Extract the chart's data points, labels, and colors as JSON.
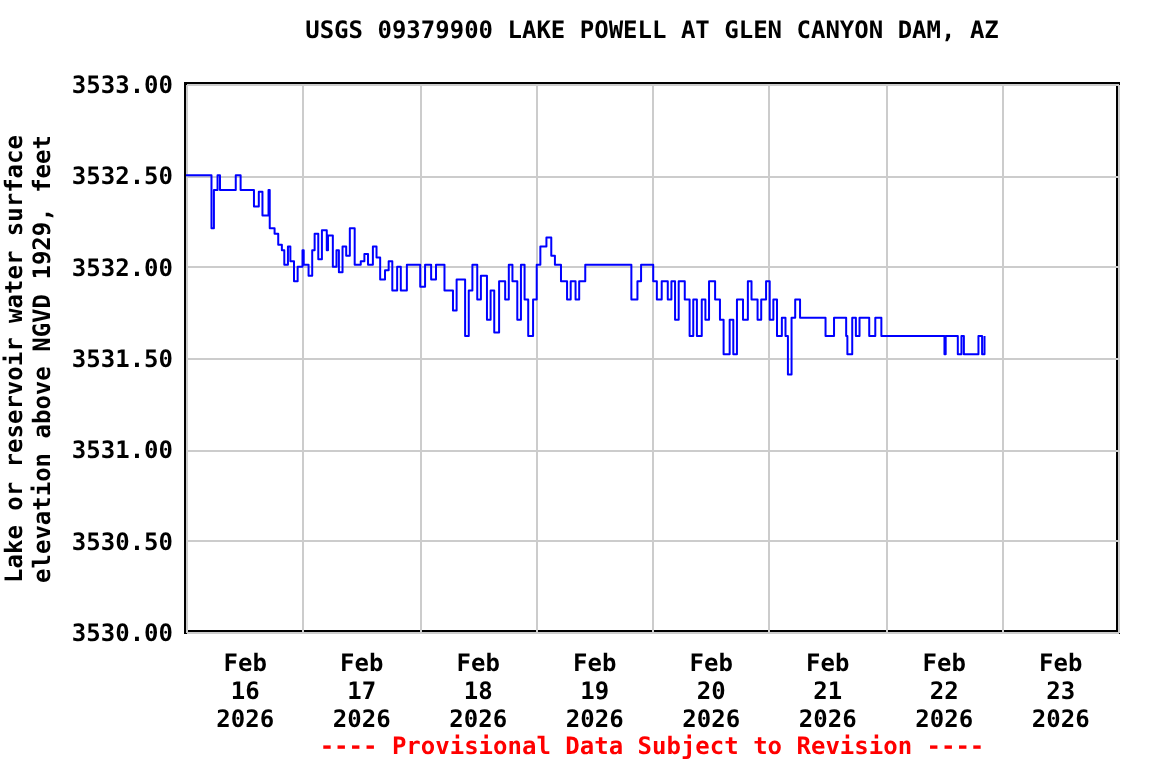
{
  "chart_data": {
    "type": "step",
    "title": "USGS 09379900 LAKE POWELL AT GLEN CANYON DAM, AZ",
    "ylabel": "Lake or reservoir water surface\nelevation above NGVD 1929, feet",
    "annotations": [
      "---- Provisional Data Subject to Revision ----"
    ],
    "grid": true,
    "ylim": [
      3530,
      3533
    ],
    "yticks": [
      {
        "value": 3530,
        "label": "3530.00"
      },
      {
        "value": 3530.5,
        "label": "3530.50"
      },
      {
        "value": 3531,
        "label": "3531.00"
      },
      {
        "value": 3531.5,
        "label": "3531.50"
      },
      {
        "value": 3532,
        "label": "3532.00"
      },
      {
        "value": 3532.5,
        "label": "3532.50"
      },
      {
        "value": 3533,
        "label": "3533.00"
      }
    ],
    "xlim": [
      "2026-02-16T00:00",
      "2026-02-24T00:00"
    ],
    "xticks": [
      {
        "value": "2026-02-16T00:00",
        "label": null
      },
      {
        "value": "2026-02-16T12:00",
        "label": "Feb\n16\n2026"
      },
      {
        "value": "2026-02-17T00:00",
        "label": null
      },
      {
        "value": "2026-02-17T12:00",
        "label": "Feb\n17\n2026"
      },
      {
        "value": "2026-02-18T00:00",
        "label": null
      },
      {
        "value": "2026-02-18T12:00",
        "label": "Feb\n18\n2026"
      },
      {
        "value": "2026-02-19T00:00",
        "label": null
      },
      {
        "value": "2026-02-19T12:00",
        "label": "Feb\n19\n2026"
      },
      {
        "value": "2026-02-20T00:00",
        "label": null
      },
      {
        "value": "2026-02-20T12:00",
        "label": "Feb\n20\n2026"
      },
      {
        "value": "2026-02-21T00:00",
        "label": null
      },
      {
        "value": "2026-02-21T12:00",
        "label": "Feb\n21\n2026"
      },
      {
        "value": "2026-02-22T00:00",
        "label": null
      },
      {
        "value": "2026-02-22T12:00",
        "label": "Feb\n22\n2026"
      },
      {
        "value": "2026-02-23T00:00",
        "label": null
      },
      {
        "value": "2026-02-23T12:00",
        "label": "Feb\n23\n2026"
      },
      {
        "value": "2026-02-24T00:00",
        "label": null
      }
    ],
    "series": [
      {
        "color": "#0000ff",
        "x": [
          "2026-02-16T00:00",
          "2026-02-16T05:00",
          "2026-02-16T05:15",
          "2026-02-16T05:45",
          "2026-02-16T06:30",
          "2026-02-16T07:00",
          "2026-02-16T10:00",
          "2026-02-16T10:15",
          "2026-02-16T11:15",
          "2026-02-16T13:30",
          "2026-02-16T14:00",
          "2026-02-16T15:00",
          "2026-02-16T15:45",
          "2026-02-16T17:00",
          "2026-02-16T17:15",
          "2026-02-16T18:15",
          "2026-02-16T19:00",
          "2026-02-16T19:45",
          "2026-02-16T20:15",
          "2026-02-16T21:00",
          "2026-02-16T21:30",
          "2026-02-16T22:15",
          "2026-02-16T23:00",
          "2026-02-17T00:00",
          "2026-02-17T00:15",
          "2026-02-17T01:15",
          "2026-02-17T02:00",
          "2026-02-17T02:30",
          "2026-02-17T03:15",
          "2026-02-17T04:00",
          "2026-02-17T05:00",
          "2026-02-17T05:15",
          "2026-02-17T06:15",
          "2026-02-17T07:00",
          "2026-02-17T07:30",
          "2026-02-17T08:15",
          "2026-02-17T09:00",
          "2026-02-17T09:45",
          "2026-02-17T10:45",
          "2026-02-17T12:00",
          "2026-02-17T12:45",
          "2026-02-17T13:30",
          "2026-02-17T14:30",
          "2026-02-17T15:15",
          "2026-02-17T16:00",
          "2026-02-17T17:00",
          "2026-02-17T17:45",
          "2026-02-17T18:30",
          "2026-02-17T19:30",
          "2026-02-17T20:15",
          "2026-02-17T21:30",
          "2026-02-17T23:00",
          "2026-02-18T00:15",
          "2026-02-18T01:15",
          "2026-02-18T02:30",
          "2026-02-18T03:30",
          "2026-02-18T05:15",
          "2026-02-18T07:00",
          "2026-02-18T07:45",
          "2026-02-18T09:30",
          "2026-02-18T10:15",
          "2026-02-18T11:00",
          "2026-02-18T12:00",
          "2026-02-18T12:45",
          "2026-02-18T14:00",
          "2026-02-18T14:45",
          "2026-02-18T15:30",
          "2026-02-18T16:30",
          "2026-02-18T17:45",
          "2026-02-18T18:30",
          "2026-02-18T19:15",
          "2026-02-18T20:15",
          "2026-02-18T21:00",
          "2026-02-18T21:45",
          "2026-02-18T22:30",
          "2026-02-18T23:30",
          "2026-02-19T00:15",
          "2026-02-19T01:00",
          "2026-02-19T02:15",
          "2026-02-19T03:15",
          "2026-02-19T04:00",
          "2026-02-19T05:15",
          "2026-02-19T06:30",
          "2026-02-19T07:15",
          "2026-02-19T08:15",
          "2026-02-19T09:00",
          "2026-02-19T10:15",
          "2026-02-19T18:30",
          "2026-02-19T19:45",
          "2026-02-19T21:00",
          "2026-02-19T21:45",
          "2026-02-19T23:30",
          "2026-02-20T00:15",
          "2026-02-20T01:00",
          "2026-02-20T02:00",
          "2026-02-20T03:15",
          "2026-02-20T04:00",
          "2026-02-20T04:45",
          "2026-02-20T05:30",
          "2026-02-20T06:45",
          "2026-02-20T07:45",
          "2026-02-20T08:30",
          "2026-02-20T09:15",
          "2026-02-20T10:15",
          "2026-02-20T11:00",
          "2026-02-20T11:45",
          "2026-02-20T13:00",
          "2026-02-20T14:00",
          "2026-02-20T14:45",
          "2026-02-20T16:00",
          "2026-02-20T16:45",
          "2026-02-20T17:30",
          "2026-02-20T18:45",
          "2026-02-20T19:45",
          "2026-02-20T20:30",
          "2026-02-20T21:45",
          "2026-02-20T22:30",
          "2026-02-20T23:30",
          "2026-02-21T00:15",
          "2026-02-21T01:00",
          "2026-02-21T01:45",
          "2026-02-21T02:45",
          "2026-02-21T03:30",
          "2026-02-21T04:00",
          "2026-02-21T04:45",
          "2026-02-21T05:30",
          "2026-02-21T06:30",
          "2026-02-21T11:00",
          "2026-02-21T11:45",
          "2026-02-21T12:30",
          "2026-02-21T13:30",
          "2026-02-21T15:00",
          "2026-02-21T16:00",
          "2026-02-21T16:15",
          "2026-02-21T17:15",
          "2026-02-21T18:00",
          "2026-02-21T18:45",
          "2026-02-21T20:45",
          "2026-02-21T22:00",
          "2026-02-21T23:00",
          "2026-02-21T23:15",
          "2026-02-22T11:45",
          "2026-02-22T12:15",
          "2026-02-22T12:30",
          "2026-02-22T14:30",
          "2026-02-22T15:00",
          "2026-02-22T15:45",
          "2026-02-22T16:15",
          "2026-02-22T18:45",
          "2026-02-22T19:15",
          "2026-02-22T20:00",
          "2026-02-22T20:30"
        ],
        "values": [
          3532.5,
          3532.5,
          3532.21,
          3532.42,
          3532.5,
          3532.42,
          3532.42,
          3532.5,
          3532.42,
          3532.42,
          3532.33,
          3532.41,
          3532.28,
          3532.42,
          3532.21,
          3532.18,
          3532.12,
          3532.09,
          3532.01,
          3532.11,
          3532.03,
          3531.92,
          3532.0,
          3532.09,
          3532.01,
          3531.95,
          3532.09,
          3532.18,
          3532.04,
          3532.2,
          3532.09,
          3532.17,
          3532.0,
          3532.09,
          3531.97,
          3532.11,
          3532.06,
          3532.21,
          3532.01,
          3532.03,
          3532.07,
          3532.01,
          3532.11,
          3532.05,
          3531.93,
          3531.98,
          3532.03,
          3531.87,
          3532.0,
          3531.87,
          3532.01,
          3532.01,
          3531.89,
          3532.01,
          3531.93,
          3532.01,
          3531.87,
          3531.76,
          3531.93,
          3531.62,
          3531.87,
          3532.01,
          3531.82,
          3531.95,
          3531.71,
          3531.87,
          3531.64,
          3531.92,
          3531.82,
          3532.01,
          3531.92,
          3531.71,
          3532.01,
          3531.82,
          3531.62,
          3531.82,
          3532.01,
          3532.11,
          3532.16,
          3532.06,
          3532.01,
          3531.92,
          3531.82,
          3531.92,
          3531.82,
          3531.92,
          3532.01,
          3532.01,
          3531.82,
          3531.92,
          3532.01,
          3532.01,
          3531.92,
          3531.82,
          3531.92,
          3531.82,
          3531.92,
          3531.71,
          3531.92,
          3531.82,
          3531.62,
          3531.82,
          3531.62,
          3531.82,
          3531.71,
          3531.92,
          3531.82,
          3531.71,
          3531.52,
          3531.71,
          3531.52,
          3531.82,
          3531.71,
          3531.92,
          3531.82,
          3531.71,
          3531.82,
          3531.92,
          3531.71,
          3531.82,
          3531.62,
          3531.72,
          3531.62,
          3531.41,
          3531.72,
          3531.82,
          3531.72,
          3531.72,
          3531.62,
          3531.62,
          3531.72,
          3531.72,
          3531.62,
          3531.52,
          3531.72,
          3531.62,
          3531.72,
          3531.62,
          3531.72,
          3531.72,
          3531.62,
          3531.62,
          3531.52,
          3531.62,
          3531.62,
          3531.52,
          3531.62,
          3531.52,
          3531.52,
          3531.62,
          3531.52,
          3531.62
        ]
      }
    ]
  }
}
